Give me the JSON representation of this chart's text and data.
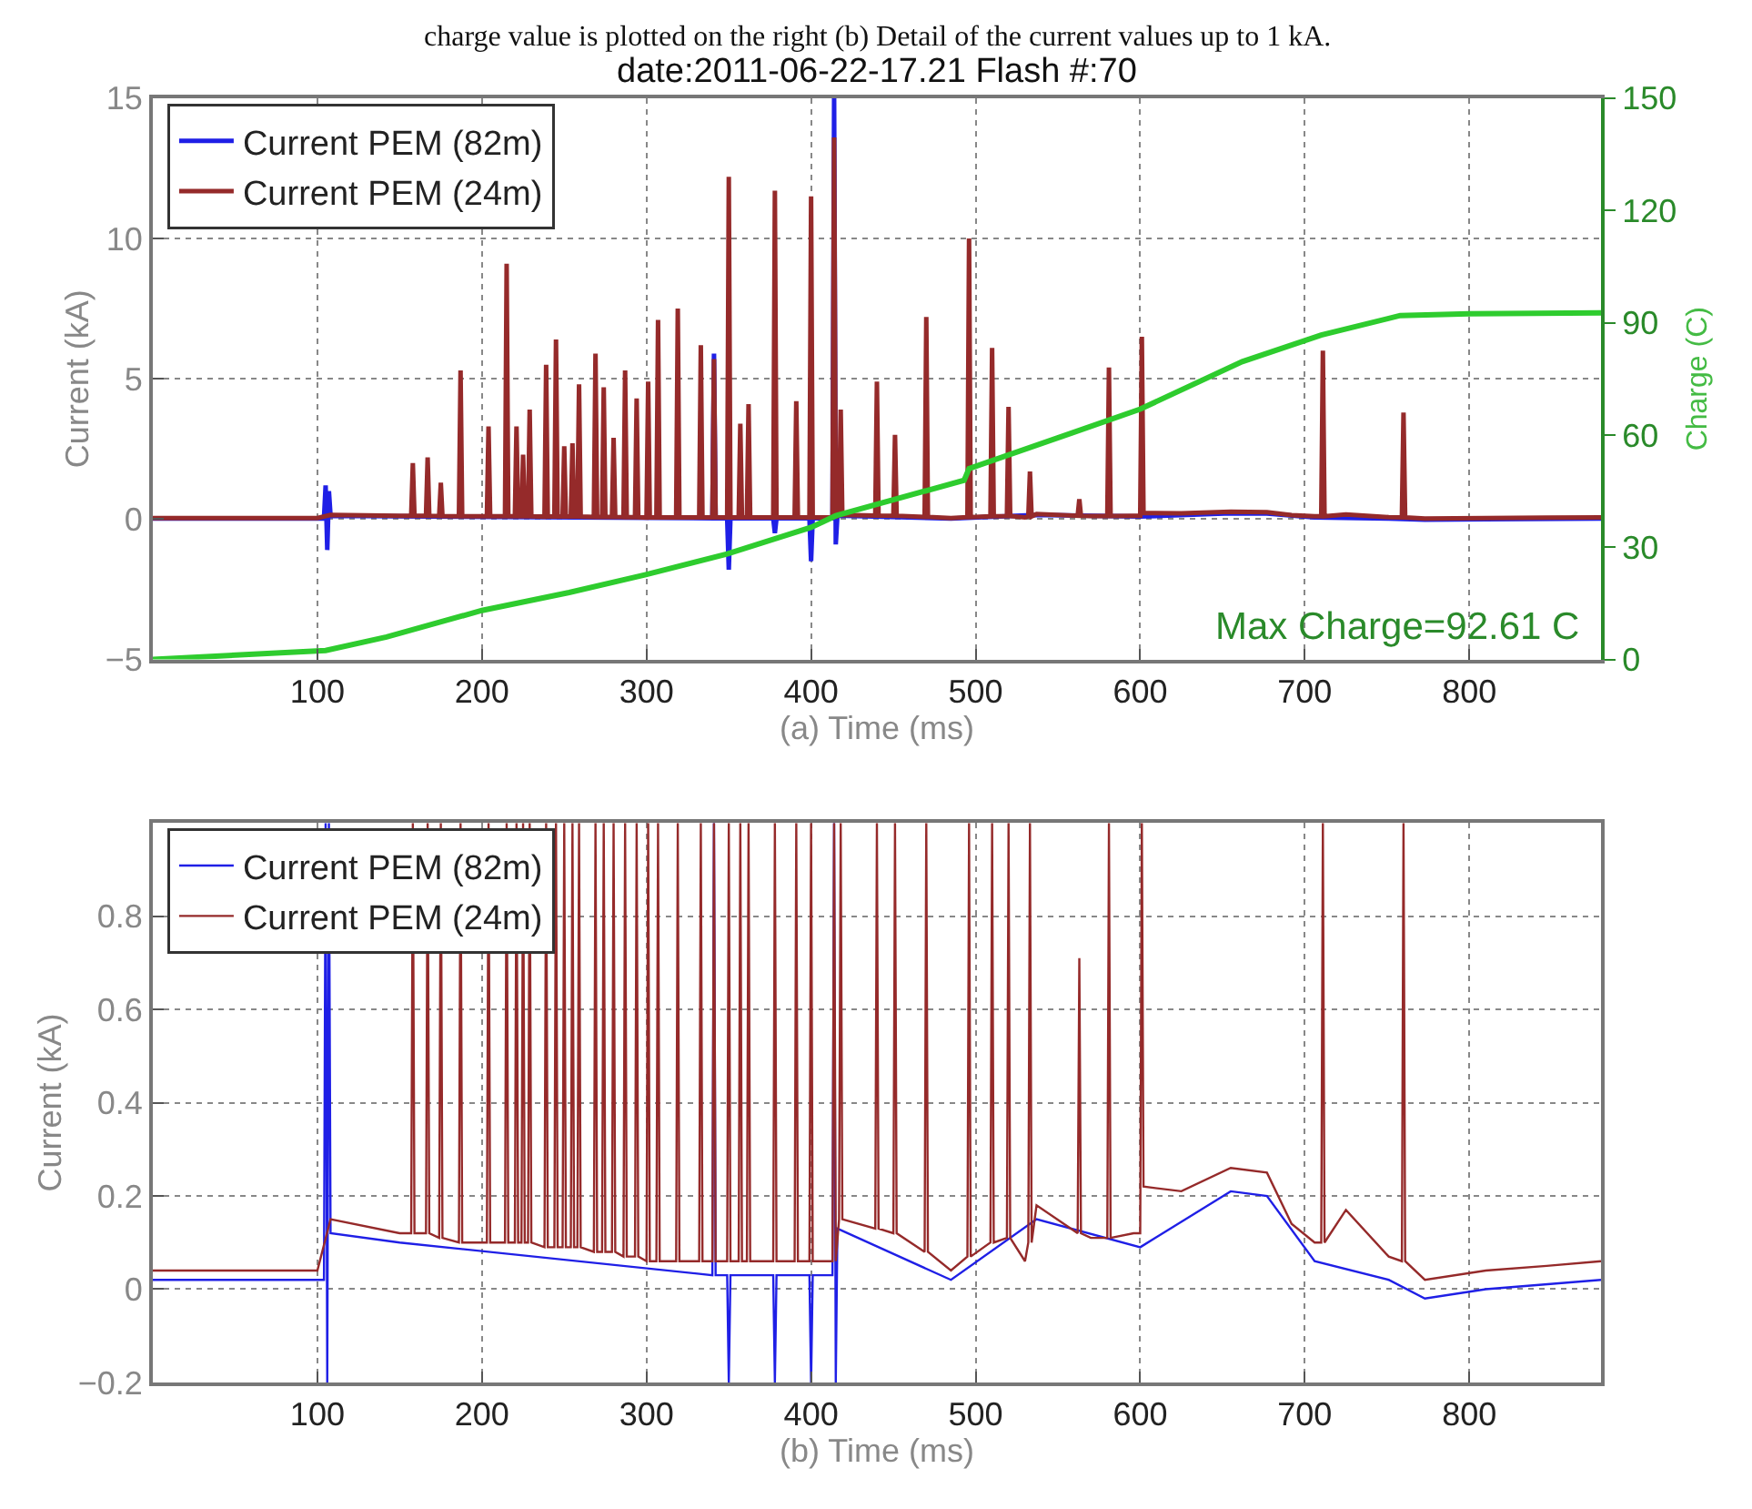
{
  "chart_data": [
    {
      "type": "line",
      "title": "date:2011-06-22-17.21 Flash #:70",
      "xlabel": "(a) Time (ms)",
      "ylabel": "Current (kA)",
      "y2label": "Charge (C)",
      "annotations": [
        "charge value is plotted on the right (b) Detail of the current values up to 1 kA.",
        "Max Charge=92.61 C"
      ],
      "xlim": [
        0,
        880
      ],
      "xticks": [
        100,
        200,
        300,
        400,
        500,
        600,
        700,
        800
      ],
      "ylim": [
        -5,
        15
      ],
      "yticks": [
        -5,
        0,
        5,
        10,
        15
      ],
      "y2lim": [
        0,
        150
      ],
      "y2ticks": [
        0,
        30,
        60,
        90,
        120,
        150
      ],
      "grid": true,
      "legend": "top left",
      "series": [
        {
          "name": "Current PEM (82m)",
          "color": "#1f1fe6",
          "x": [
            0,
            100,
            104,
            105,
            106,
            107,
            108,
            150,
            340,
            341,
            342,
            349,
            350,
            351,
            377,
            378,
            379,
            399,
            400,
            401,
            413,
            414,
            415,
            416,
            485,
            537,
            600,
            655,
            677,
            706,
            751,
            773,
            810,
            880
          ],
          "values": [
            0.02,
            0.02,
            0.02,
            1.2,
            -1.1,
            1.0,
            0.12,
            0.1,
            0.03,
            5.9,
            0.03,
            0.03,
            -1.8,
            0.03,
            0.03,
            -0.5,
            0.03,
            0.03,
            -1.5,
            0.03,
            0.03,
            15,
            -0.9,
            0.13,
            0.02,
            0.15,
            0.09,
            0.21,
            0.2,
            0.06,
            0.02,
            -0.02,
            0.0,
            0.02
          ]
        },
        {
          "name": "Current PEM (24m)",
          "color": "#952a2a",
          "x": [
            0,
            50,
            100,
            108,
            150,
            157,
            158,
            159,
            166,
            167,
            168,
            174,
            175,
            176,
            186,
            187,
            188,
            203,
            204,
            205,
            214,
            215,
            216,
            220,
            221,
            222,
            224,
            225,
            226,
            228,
            229,
            230,
            238,
            239,
            240,
            244,
            245,
            246,
            249,
            250,
            251,
            254,
            255,
            256,
            258,
            259,
            260,
            268,
            269,
            270,
            273,
            274,
            275,
            279,
            280,
            281,
            286,
            287,
            288,
            293,
            294,
            295,
            300,
            301,
            302,
            306,
            307,
            308,
            318,
            319,
            320,
            332,
            333,
            334,
            340,
            341,
            342,
            349,
            350,
            351,
            356,
            357,
            358,
            361,
            362,
            363,
            377,
            378,
            379,
            390,
            391,
            392,
            399,
            400,
            401,
            413,
            414,
            415,
            417,
            418,
            419,
            439,
            440,
            441,
            450,
            451,
            452,
            469,
            470,
            471,
            485,
            495,
            496,
            497,
            509,
            510,
            511,
            519,
            520,
            521,
            530,
            532,
            533,
            534,
            537,
            562,
            563,
            564,
            570,
            580,
            581,
            582,
            596,
            600,
            601,
            602,
            625,
            655,
            677,
            692,
            706,
            710,
            711,
            712,
            725,
            751,
            759,
            760,
            761,
            773,
            810,
            847,
            880
          ],
          "values": [
            0.04,
            0.04,
            0.04,
            0.15,
            0.12,
            0.12,
            2.0,
            0.12,
            0.12,
            2.2,
            0.12,
            0.11,
            1.3,
            0.11,
            0.1,
            5.3,
            0.1,
            0.1,
            3.3,
            0.1,
            0.1,
            9.1,
            0.1,
            0.1,
            3.3,
            0.1,
            0.1,
            2.3,
            0.1,
            0.1,
            3.9,
            0.1,
            0.09,
            5.5,
            0.09,
            0.09,
            6.4,
            0.09,
            0.09,
            2.6,
            0.09,
            0.09,
            2.7,
            0.09,
            0.09,
            4.8,
            0.09,
            0.08,
            5.9,
            0.08,
            0.08,
            4.7,
            0.08,
            0.08,
            2.9,
            0.08,
            0.07,
            5.3,
            0.07,
            0.07,
            4.3,
            0.07,
            0.06,
            4.9,
            0.06,
            0.06,
            7.1,
            0.06,
            0.06,
            7.5,
            0.06,
            0.06,
            6.2,
            0.06,
            0.06,
            5.7,
            0.06,
            0.06,
            12.2,
            0.06,
            0.06,
            3.4,
            0.06,
            0.06,
            4.1,
            0.06,
            0.06,
            11.7,
            0.06,
            0.06,
            4.2,
            0.06,
            0.06,
            11.5,
            0.06,
            0.06,
            13.6,
            0.06,
            0.15,
            3.9,
            0.15,
            0.13,
            4.9,
            0.13,
            0.12,
            3.0,
            0.12,
            0.08,
            7.2,
            0.08,
            0.04,
            0.07,
            10.0,
            0.07,
            0.1,
            6.1,
            0.1,
            0.11,
            4.0,
            0.11,
            0.06,
            0.1,
            1.7,
            0.1,
            0.18,
            0.12,
            0.71,
            0.12,
            0.11,
            0.11,
            5.4,
            0.11,
            0.12,
            0.12,
            6.5,
            0.22,
            0.21,
            0.26,
            0.25,
            0.14,
            0.1,
            0.1,
            6.0,
            0.1,
            0.17,
            0.07,
            0.06,
            3.8,
            0.06,
            0.02,
            0.04,
            0.05,
            0.06
          ]
        },
        {
          "color": "#2ecc2e",
          "axis": "y2",
          "x": [
            0,
            105,
            142,
            200,
            253,
            299,
            349,
            400,
            415,
            493,
            496,
            559,
            600,
            662,
            710,
            758,
            800,
            880
          ],
          "values": [
            0,
            2.4,
            6,
            13.1,
            17.9,
            22.6,
            28.2,
            35.3,
            38.4,
            47.9,
            51,
            60.6,
            66.9,
            79.6,
            86.7,
            91.9,
            92.4,
            92.6
          ]
        }
      ]
    },
    {
      "type": "line",
      "xlabel": "(b) Time (ms)",
      "ylabel": "Current (kA)",
      "xlim": [
        0,
        880
      ],
      "xticks": [
        100,
        200,
        300,
        400,
        500,
        600,
        700,
        800
      ],
      "ylim": [
        -0.2,
        1
      ],
      "yticks": [
        {
          "value": -0.2,
          "label": "−0.2"
        },
        0,
        0.2,
        0.4,
        0.6,
        0.8
      ],
      "grid": true,
      "legend": "top left",
      "series": [
        {
          "name": "Current PEM (82m)",
          "color": "#1f1fe6",
          "x": [
            0,
            100,
            104,
            105,
            106,
            107,
            108,
            150,
            340,
            341,
            342,
            349,
            350,
            351,
            377,
            378,
            379,
            399,
            400,
            401,
            413,
            414,
            415,
            416,
            485,
            537,
            600,
            655,
            677,
            706,
            751,
            773,
            810,
            880
          ],
          "values": [
            0.02,
            0.02,
            0.02,
            1,
            -0.2,
            1,
            0.12,
            0.1,
            0.03,
            1,
            0.03,
            0.03,
            -0.2,
            0.03,
            0.03,
            -0.2,
            0.03,
            0.03,
            -0.2,
            0.03,
            0.03,
            1,
            -0.2,
            0.13,
            0.02,
            0.15,
            0.09,
            0.21,
            0.2,
            0.06,
            0.02,
            -0.02,
            0.0,
            0.02
          ]
        },
        {
          "name": "Current PEM (24m)",
          "color": "#952a2a",
          "x": [
            0,
            50,
            100,
            108,
            150,
            157,
            158,
            159,
            166,
            167,
            168,
            174,
            175,
            176,
            186,
            187,
            188,
            203,
            204,
            205,
            214,
            215,
            216,
            220,
            221,
            222,
            224,
            225,
            226,
            228,
            229,
            230,
            238,
            239,
            240,
            244,
            245,
            246,
            249,
            250,
            251,
            254,
            255,
            256,
            258,
            259,
            260,
            268,
            269,
            270,
            273,
            274,
            275,
            279,
            280,
            281,
            286,
            287,
            288,
            293,
            294,
            295,
            300,
            301,
            302,
            306,
            307,
            308,
            318,
            319,
            320,
            332,
            333,
            334,
            340,
            341,
            342,
            349,
            350,
            351,
            356,
            357,
            358,
            361,
            362,
            363,
            377,
            378,
            379,
            390,
            391,
            392,
            399,
            400,
            401,
            413,
            414,
            415,
            417,
            418,
            419,
            439,
            440,
            441,
            450,
            451,
            452,
            469,
            470,
            471,
            485,
            495,
            496,
            497,
            509,
            510,
            511,
            519,
            520,
            521,
            530,
            532,
            533,
            534,
            537,
            562,
            563,
            564,
            570,
            580,
            581,
            582,
            596,
            600,
            601,
            602,
            625,
            655,
            677,
            692,
            706,
            710,
            711,
            712,
            725,
            751,
            759,
            760,
            761,
            773,
            810,
            847,
            880
          ],
          "values": [
            0.04,
            0.04,
            0.04,
            0.15,
            0.12,
            0.12,
            1,
            0.12,
            0.12,
            1,
            0.12,
            0.11,
            1,
            0.11,
            0.1,
            1,
            0.1,
            0.1,
            1,
            0.1,
            0.1,
            1,
            0.1,
            0.1,
            1,
            0.1,
            0.1,
            1,
            0.1,
            0.1,
            1,
            0.1,
            0.09,
            1,
            0.09,
            0.09,
            1,
            0.09,
            0.09,
            1,
            0.09,
            0.09,
            1,
            0.09,
            0.09,
            1,
            0.09,
            0.08,
            1,
            0.08,
            0.08,
            1,
            0.08,
            0.08,
            1,
            0.08,
            0.07,
            1,
            0.07,
            0.07,
            1,
            0.07,
            0.06,
            1,
            0.06,
            0.06,
            1,
            0.06,
            0.06,
            1,
            0.06,
            0.06,
            1,
            0.06,
            0.06,
            1,
            0.06,
            0.06,
            1,
            0.06,
            0.06,
            1,
            0.06,
            0.06,
            1,
            0.06,
            0.06,
            1,
            0.06,
            0.06,
            1,
            0.06,
            0.06,
            1,
            0.06,
            0.06,
            1,
            0.06,
            0.15,
            1,
            0.15,
            0.13,
            1,
            0.13,
            0.12,
            1,
            0.12,
            0.08,
            1,
            0.08,
            0.04,
            0.07,
            1,
            0.07,
            0.1,
            1,
            0.1,
            0.11,
            1,
            0.11,
            0.06,
            0.1,
            1,
            0.1,
            0.18,
            0.12,
            0.71,
            0.12,
            0.11,
            0.11,
            1,
            0.11,
            0.12,
            0.12,
            1,
            0.22,
            0.21,
            0.26,
            0.25,
            0.14,
            0.1,
            0.1,
            1,
            0.1,
            0.17,
            0.07,
            0.06,
            1,
            0.06,
            0.02,
            0.04,
            0.05,
            0.06
          ]
        }
      ]
    }
  ]
}
